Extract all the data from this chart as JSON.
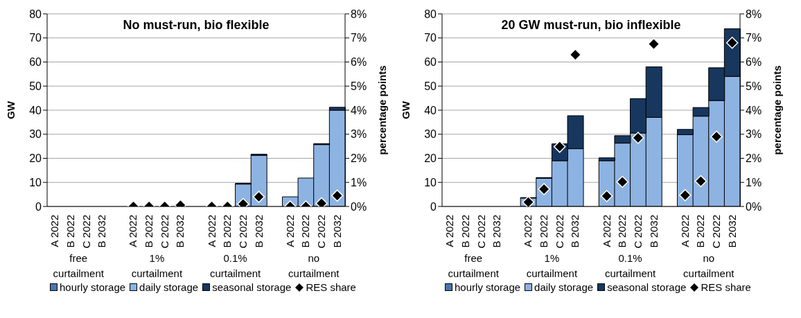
{
  "chart_data": [
    {
      "type": "bar",
      "title": "No must-run, bio flexible",
      "ylabel": "GW",
      "y2label": "percentage points",
      "stacked": true,
      "grid": "y",
      "legend": "bottom",
      "categories": [
        "A 2022",
        "B 2022",
        "C 2022",
        "B 2032",
        null,
        "A 2022",
        "B 2022",
        "C 2022",
        "B 2032",
        null,
        "A 2022",
        "B 2022",
        "C 2022",
        "B 2032",
        null,
        "A 2022",
        "B 2022",
        "C 2022",
        "B 2032"
      ],
      "annotations": [
        "free curtailment",
        "1% curtailment",
        "0.1% curtailment",
        "no curtailment"
      ],
      "ylim": [
        0,
        80
      ],
      "yticks": [
        0,
        10,
        20,
        30,
        40,
        50,
        60,
        70,
        80
      ],
      "y2lim": [
        0,
        8
      ],
      "y2ticks": [
        {
          "value": 0,
          "label": "0%"
        },
        {
          "value": 1,
          "label": "1%"
        },
        {
          "value": 2,
          "label": "2%"
        },
        {
          "value": 3,
          "label": "3%"
        },
        {
          "value": 4,
          "label": "4%"
        },
        {
          "value": 5,
          "label": "5%"
        },
        {
          "value": 6,
          "label": "6%"
        },
        {
          "value": 7,
          "label": "7%"
        },
        {
          "value": 8,
          "label": "8%"
        }
      ],
      "series": [
        {
          "name": "hourly storage",
          "color": "#4a76ad",
          "values": [
            0,
            0,
            0,
            0,
            null,
            0,
            0,
            0,
            0,
            null,
            0,
            0,
            0,
            0,
            null,
            0,
            0,
            0,
            0
          ]
        },
        {
          "name": "daily storage",
          "color": "#8db3e2",
          "values": [
            0,
            0,
            0,
            0,
            null,
            0,
            0,
            0,
            null,
            null,
            0,
            0,
            9.3,
            21.2,
            null,
            4,
            11.8,
            25.7,
            40
          ]
        },
        {
          "name": "seasonal storage",
          "color": "#17375e",
          "values": [
            0,
            0,
            0,
            0,
            null,
            0,
            0,
            0,
            0,
            null,
            0,
            0,
            0.3,
            0.5,
            null,
            0,
            0,
            0.4,
            1.2
          ]
        },
        {
          "name": "RES share",
          "type": "scatter",
          "axis": "y2",
          "marker": "diamond",
          "color": "#000000",
          "values": [
            null,
            null,
            null,
            null,
            null,
            0,
            0,
            0,
            0.05,
            null,
            0,
            0,
            0.1,
            0.4,
            null,
            0,
            0,
            0.13,
            0.45
          ]
        }
      ]
    },
    {
      "type": "bar",
      "title": "20 GW must-run, bio inflexible",
      "ylabel": "GW",
      "y2label": "percentage points",
      "stacked": true,
      "grid": "y",
      "legend": "bottom",
      "categories": [
        "A 2022",
        "B 2022",
        "C 2022",
        "B 2032",
        null,
        "A 2022",
        "B 2022",
        "C 2022",
        "B 2032",
        null,
        "A 2022",
        "B 2022",
        "C 2022",
        "B 2032",
        null,
        "A 2022",
        "B 2022",
        "C 2022",
        "B 2032"
      ],
      "annotations": [
        "free curtailment",
        "1% curtailment",
        "0.1% curtailment",
        "no curtailment"
      ],
      "ylim": [
        0,
        80
      ],
      "yticks": [
        0,
        10,
        20,
        30,
        40,
        50,
        60,
        70,
        80
      ],
      "y2lim": [
        0,
        8
      ],
      "y2ticks": [
        {
          "value": 0,
          "label": "0%"
        },
        {
          "value": 1,
          "label": "1%"
        },
        {
          "value": 2,
          "label": "2%"
        },
        {
          "value": 3,
          "label": "3%"
        },
        {
          "value": 4,
          "label": "4%"
        },
        {
          "value": 5,
          "label": "5%"
        },
        {
          "value": 6,
          "label": "6%"
        },
        {
          "value": 7,
          "label": "7%"
        },
        {
          "value": 8,
          "label": "8%"
        }
      ],
      "series": [
        {
          "name": "hourly storage",
          "color": "#4a76ad",
          "values": [
            0,
            0,
            0,
            0,
            null,
            0,
            0,
            0,
            0,
            null,
            0,
            0,
            0,
            0,
            null,
            0,
            null,
            0,
            0
          ]
        },
        {
          "name": "daily storage",
          "color": "#8db3e2",
          "values": [
            0,
            0,
            0,
            0,
            null,
            3.5,
            11.7,
            19,
            24,
            null,
            19,
            26.3,
            30.5,
            37,
            null,
            29.8,
            37.5,
            44,
            54
          ]
        },
        {
          "name": "seasonal storage",
          "color": "#17375e",
          "values": [
            0,
            0,
            0,
            0,
            null,
            0.2,
            0.3,
            7,
            13.7,
            null,
            1.2,
            3.1,
            14.3,
            21,
            null,
            2.2,
            3.6,
            13.6,
            19.8
          ]
        },
        {
          "name": "RES share",
          "type": "scatter",
          "axis": "y2",
          "marker": "diamond",
          "color": "#000000",
          "values": [
            null,
            null,
            null,
            null,
            null,
            0.18,
            0.72,
            2.48,
            6.3,
            null,
            0.43,
            1.02,
            2.85,
            6.75,
            null,
            0.47,
            1.05,
            2.9,
            6.8
          ]
        }
      ]
    }
  ]
}
